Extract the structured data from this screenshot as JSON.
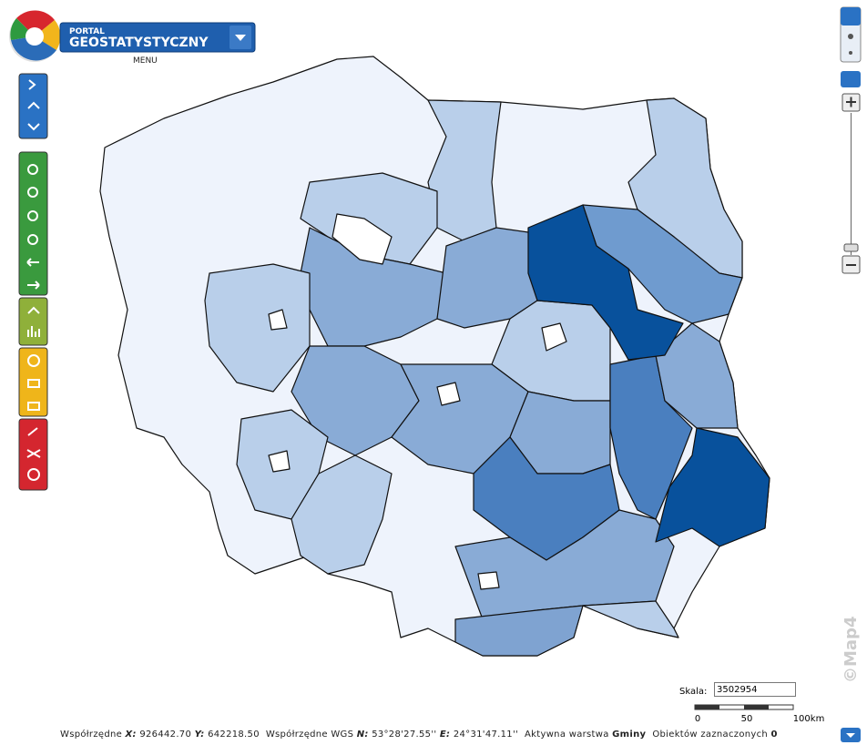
{
  "header": {
    "logo_top": "PORTAL",
    "logo_main": "GEOSTATYSTYCZNY",
    "menu": "MENU"
  },
  "scale": {
    "label": "Skala:",
    "value": "3502954",
    "bar_labels": [
      "0",
      "50",
      "100km"
    ]
  },
  "status_bar": {
    "coords_label": "Współrzędne",
    "x_label": "X:",
    "x": "926442.70",
    "y_label": "Y:",
    "y": "642218.50",
    "wgs_label": "Współrzędne WGS",
    "n_label": "N:",
    "n": "53°28'27.55''",
    "e_label": "E:",
    "e": "24°31'47.11''",
    "layer_label": "Aktywna warstwa",
    "layer": "Gminy",
    "selected_label": "Obiektów zaznaczonych",
    "selected": "0"
  },
  "watermark": "©Map4"
}
